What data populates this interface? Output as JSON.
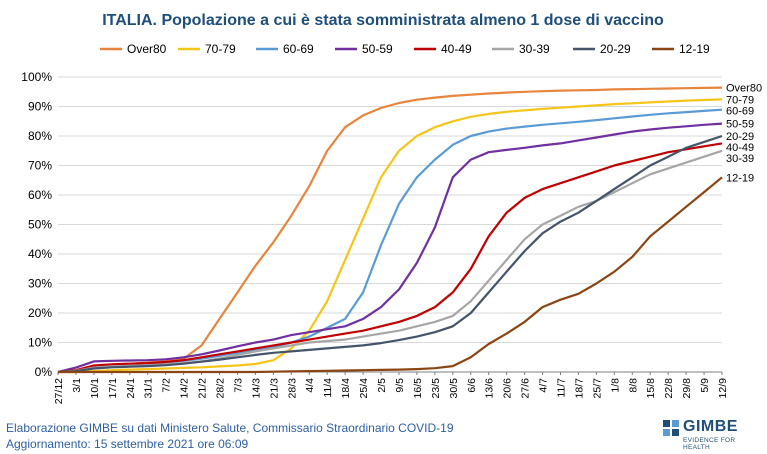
{
  "chart_data": {
    "type": "line",
    "title": "ITALIA. Popolazione a cui è stata somministrata almeno 1 dose di vaccino",
    "legend_position": "top",
    "ylim": [
      0,
      100
    ],
    "y_ticks": [
      "0%",
      "10%",
      "20%",
      "30%",
      "40%",
      "50%",
      "60%",
      "70%",
      "80%",
      "90%",
      "100%"
    ],
    "x_ticks": [
      "27/12",
      "3/1",
      "10/1",
      "17/1",
      "24/1",
      "31/1",
      "7/2",
      "14/2",
      "21/2",
      "28/2",
      "7/3",
      "14/3",
      "21/3",
      "28/3",
      "4/4",
      "11/4",
      "18/4",
      "25/4",
      "2/5",
      "9/5",
      "16/5",
      "23/5",
      "30/5",
      "6/6",
      "13/6",
      "20/6",
      "27/6",
      "4/7",
      "11/7",
      "18/7",
      "25/7",
      "1/8",
      "8/8",
      "15/8",
      "22/8",
      "29/8",
      "5/9",
      "12/9"
    ],
    "grid": true,
    "series": [
      {
        "name": "Over80",
        "end_label": "Over80",
        "color": "#e8853d",
        "values": [
          0,
          0.2,
          2,
          2.5,
          2.8,
          3.2,
          3.6,
          4.5,
          9,
          18,
          27,
          36,
          44,
          53,
          63,
          75,
          83,
          87,
          89.5,
          91.2,
          92.3,
          93,
          93.6,
          94,
          94.4,
          94.7,
          95,
          95.2,
          95.4,
          95.5,
          95.6,
          95.8,
          95.9,
          96,
          96.1,
          96.2,
          96.3,
          96.4
        ]
      },
      {
        "name": "70-79",
        "end_label": "70-79",
        "color": "#f5c518",
        "values": [
          0,
          0,
          0.3,
          0.6,
          0.8,
          1,
          1.2,
          1.4,
          1.6,
          1.9,
          2.2,
          2.7,
          4,
          8,
          14,
          24,
          38,
          52,
          66,
          75,
          80,
          83,
          85,
          86.5,
          87.5,
          88.2,
          88.7,
          89.2,
          89.6,
          90,
          90.4,
          90.8,
          91.1,
          91.4,
          91.7,
          92,
          92.2,
          92.4
        ]
      },
      {
        "name": "60-69",
        "end_label": "60-69",
        "color": "#5b9bd5",
        "values": [
          0,
          0.5,
          2,
          2.4,
          2.6,
          2.9,
          3.3,
          3.8,
          4.5,
          5.5,
          6.5,
          7.5,
          8.5,
          10,
          12,
          15,
          18,
          27,
          43,
          57,
          66,
          72,
          77,
          80,
          81.5,
          82.5,
          83.2,
          83.8,
          84.3,
          84.8,
          85.4,
          86,
          86.6,
          87.2,
          87.7,
          88.1,
          88.5,
          88.9
        ]
      },
      {
        "name": "50-59",
        "end_label": "50-59",
        "color": "#7030a0",
        "values": [
          0,
          1.5,
          3.6,
          3.8,
          3.9,
          4,
          4.3,
          5,
          6,
          7.3,
          8.7,
          10,
          11,
          12.5,
          13.5,
          14.5,
          15.5,
          18,
          22,
          28,
          37,
          49,
          66,
          72,
          74.5,
          75.3,
          76,
          76.8,
          77.5,
          78.5,
          79.5,
          80.5,
          81.5,
          82.2,
          82.8,
          83.3,
          83.8,
          84.2
        ]
      },
      {
        "name": "40-49",
        "end_label": "40-49",
        "color": "#c00000",
        "values": [
          0,
          0.6,
          2.2,
          2.6,
          2.8,
          3,
          3.4,
          4,
          5,
          6,
          7,
          8,
          9,
          10,
          11,
          12,
          13,
          14,
          15.5,
          17,
          19,
          22,
          27,
          35,
          46,
          54,
          59,
          62,
          64,
          66,
          68,
          70,
          71.5,
          73,
          74.5,
          75.5,
          76.5,
          77.5
        ]
      },
      {
        "name": "30-39",
        "end_label": "30-39",
        "color": "#a6a6a6",
        "values": [
          0,
          0.4,
          1.5,
          1.9,
          2.1,
          2.3,
          2.6,
          3,
          3.6,
          4.6,
          5.8,
          7,
          8,
          9,
          10,
          10.5,
          11,
          12,
          13,
          14,
          15.5,
          17,
          19,
          24,
          31,
          38,
          45,
          50,
          53,
          56,
          58,
          61,
          64,
          67,
          69,
          71,
          73,
          75
        ]
      },
      {
        "name": "20-29",
        "end_label": "20-29",
        "color": "#44546a",
        "values": [
          0,
          0.3,
          1.2,
          1.6,
          1.8,
          2,
          2.3,
          2.8,
          3.5,
          4.2,
          5,
          5.8,
          6.5,
          7,
          7.5,
          8,
          8.5,
          9,
          9.8,
          10.8,
          12,
          13.5,
          15.5,
          20,
          27,
          34,
          41,
          47,
          51,
          54,
          58,
          62,
          66,
          70,
          73,
          76,
          78,
          80
        ]
      },
      {
        "name": "12-19",
        "end_label": "12-19",
        "color": "#8b4513",
        "values": [
          0,
          0,
          0,
          0,
          0,
          0,
          0,
          0,
          0,
          0,
          0,
          0,
          0.1,
          0.2,
          0.3,
          0.4,
          0.5,
          0.6,
          0.7,
          0.8,
          1,
          1.3,
          2,
          5,
          9.5,
          13,
          17,
          22,
          24.5,
          26.5,
          30,
          34,
          39,
          46,
          51,
          56,
          61,
          66
        ]
      }
    ]
  },
  "footer": {
    "line1": "Elaborazione GIMBE su dati Ministero Salute, Commissario Straordinario COVID-19",
    "line2": "Aggiornamento: 15 settembre 2021 ore 06:09"
  },
  "logo": {
    "brand": "GIMBE",
    "tagline": "EVIDENCE FOR HEALTH",
    "color": "#1f4e79"
  }
}
